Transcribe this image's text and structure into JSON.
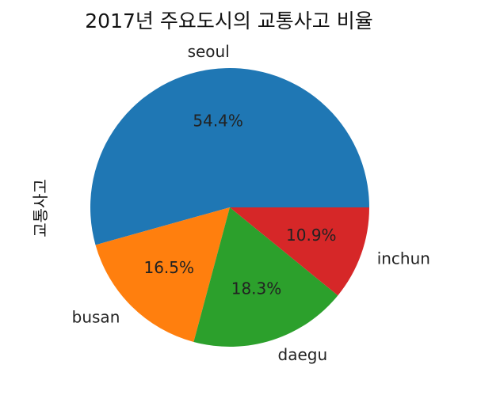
{
  "chart_data": {
    "type": "pie",
    "title": "2017년 주요도시의 교통사고 비율",
    "ylabel": "교통사고",
    "categories": [
      "seoul",
      "busan",
      "daegu",
      "inchun"
    ],
    "values": [
      54.4,
      16.5,
      18.3,
      10.9
    ],
    "percent_labels": [
      "54.4%",
      "16.5%",
      "18.3%",
      "10.9%"
    ],
    "colors": [
      "#1f77b4",
      "#ff7f0e",
      "#2ca02c",
      "#d62728"
    ],
    "start_angle_deg": 0,
    "direction": "counterclockwise"
  }
}
